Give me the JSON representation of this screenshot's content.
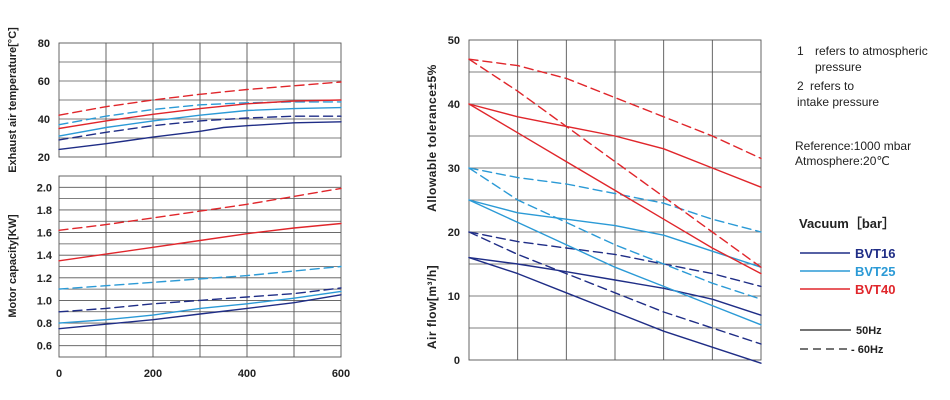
{
  "chart_data": [
    {
      "type": "line",
      "name": "exhaust-temperature",
      "ylabel": "Exhaust air temperature[°C]",
      "xlim": [
        0,
        600
      ],
      "ylim": [
        20,
        80
      ],
      "yticks": [
        "20",
        "40",
        "60",
        "80"
      ],
      "grid": true,
      "series": [
        {
          "name": "BVT16",
          "style": "solid",
          "color": "#1f2d86",
          "x": [
            0,
            100,
            200,
            300,
            350,
            400,
            500,
            600
          ],
          "y": [
            24,
            27,
            30.5,
            33.5,
            35.5,
            36.5,
            38,
            38.5
          ]
        },
        {
          "name": "BVT16",
          "style": "dashed",
          "color": "#1f2d86",
          "x": [
            0,
            100,
            200,
            300,
            400,
            500,
            600
          ],
          "y": [
            29,
            33,
            36.5,
            39,
            40.5,
            41.5,
            41.5
          ]
        },
        {
          "name": "BVT25",
          "style": "solid",
          "color": "#2b9ad6",
          "x": [
            0,
            100,
            200,
            300,
            400,
            500,
            600
          ],
          "y": [
            31,
            35.5,
            39,
            42,
            44.5,
            45.5,
            46
          ]
        },
        {
          "name": "BVT25",
          "style": "dashed",
          "color": "#2b9ad6",
          "x": [
            0,
            100,
            200,
            300,
            400,
            500,
            600
          ],
          "y": [
            37,
            41.5,
            45,
            47.5,
            48.5,
            49,
            49
          ]
        },
        {
          "name": "BVT40",
          "style": "solid",
          "color": "#e0262b",
          "x": [
            0,
            100,
            200,
            300,
            400,
            500,
            600
          ],
          "y": [
            35,
            39,
            42.5,
            45.5,
            48,
            49.5,
            50
          ]
        },
        {
          "name": "BVT40",
          "style": "dashed",
          "color": "#e0262b",
          "x": [
            0,
            100,
            200,
            300,
            400,
            500,
            600
          ],
          "y": [
            42,
            46.5,
            50,
            53,
            55.5,
            57.5,
            59.5
          ]
        }
      ]
    },
    {
      "type": "line",
      "name": "motor-capacity",
      "ylabel": "Motor capacity[KW]",
      "xlim": [
        0,
        600
      ],
      "ylim": [
        0.5,
        2.1
      ],
      "yticks": [
        "0.6",
        "0.8",
        "1.0",
        "1.2",
        "1.4",
        "1.6",
        "1.8",
        "2.0"
      ],
      "xticks": [
        "0",
        "200",
        "400",
        "600"
      ],
      "grid": true,
      "series": [
        {
          "name": "BVT16",
          "style": "solid",
          "color": "#1f2d86",
          "x": [
            0,
            100,
            200,
            300,
            400,
            500,
            600
          ],
          "y": [
            0.75,
            0.79,
            0.83,
            0.88,
            0.93,
            0.98,
            1.05
          ]
        },
        {
          "name": "BVT16",
          "style": "dashed",
          "color": "#1f2d86",
          "x": [
            0,
            100,
            200,
            300,
            400,
            500,
            600
          ],
          "y": [
            0.9,
            0.93,
            0.97,
            1.0,
            1.03,
            1.06,
            1.11
          ]
        },
        {
          "name": "BVT25",
          "style": "solid",
          "color": "#2b9ad6",
          "x": [
            0,
            100,
            200,
            300,
            400,
            500,
            600
          ],
          "y": [
            0.8,
            0.83,
            0.87,
            0.93,
            0.97,
            1.02,
            1.08
          ]
        },
        {
          "name": "BVT25",
          "style": "dashed",
          "color": "#2b9ad6",
          "x": [
            0,
            100,
            200,
            300,
            400,
            500,
            600
          ],
          "y": [
            1.1,
            1.13,
            1.16,
            1.19,
            1.22,
            1.26,
            1.3
          ]
        },
        {
          "name": "BVT40",
          "style": "solid",
          "color": "#e0262b",
          "x": [
            0,
            100,
            200,
            300,
            400,
            500,
            600
          ],
          "y": [
            1.35,
            1.41,
            1.47,
            1.53,
            1.59,
            1.64,
            1.68
          ]
        },
        {
          "name": "BVT40",
          "style": "dashed",
          "color": "#e0262b",
          "x": [
            0,
            100,
            200,
            300,
            400,
            500,
            600
          ],
          "y": [
            1.62,
            1.67,
            1.73,
            1.79,
            1.85,
            1.92,
            1.99
          ]
        }
      ]
    },
    {
      "type": "line",
      "name": "air-flow",
      "ylabel_top": "Allowable tolerance±5%",
      "ylabel_bottom": "Air flow[m³/h]",
      "xlim": [
        0,
        6
      ],
      "ylim": [
        0,
        50
      ],
      "yticks": [
        "0",
        "10",
        "20",
        "30",
        "40",
        "50"
      ],
      "grid": true,
      "series": [
        {
          "name": "BVT16 1",
          "style": "solid",
          "color": "#1f2d86",
          "x": [
            0,
            1,
            2,
            3,
            4,
            5,
            6
          ],
          "y": [
            16,
            13.5,
            10.5,
            7.5,
            4.5,
            2,
            -0.5
          ]
        },
        {
          "name": "BVT16 2",
          "style": "solid",
          "color": "#1f2d86",
          "x": [
            0,
            1,
            2,
            3,
            4,
            5,
            6
          ],
          "y": [
            16,
            15,
            13.8,
            12.5,
            11.2,
            9.5,
            7
          ]
        },
        {
          "name": "BVT16 1",
          "style": "dashed",
          "color": "#1f2d86",
          "x": [
            0,
            1,
            2,
            3,
            4,
            5,
            6
          ],
          "y": [
            20,
            16.5,
            13.5,
            10.5,
            7.5,
            5,
            2.5
          ]
        },
        {
          "name": "BVT16 2",
          "style": "dashed",
          "color": "#1f2d86",
          "x": [
            0,
            1,
            2,
            3,
            4,
            5,
            6
          ],
          "y": [
            20,
            18.5,
            17.5,
            16.5,
            15,
            13.5,
            11.5
          ]
        },
        {
          "name": "BVT25 1",
          "style": "solid",
          "color": "#2b9ad6",
          "x": [
            0,
            1,
            2,
            3,
            4,
            5,
            6
          ],
          "y": [
            25,
            21.5,
            18,
            14.5,
            11.5,
            8.5,
            5.5
          ]
        },
        {
          "name": "BVT25 2",
          "style": "solid",
          "color": "#2b9ad6",
          "x": [
            0,
            1,
            2,
            3,
            4,
            5,
            6
          ],
          "y": [
            25,
            23,
            22,
            21,
            19.5,
            17,
            14.5
          ]
        },
        {
          "name": "BVT25 1",
          "style": "dashed",
          "color": "#2b9ad6",
          "x": [
            0,
            1,
            2,
            3,
            4,
            5,
            6
          ],
          "y": [
            30,
            25,
            21.5,
            18,
            15,
            12,
            9.5
          ]
        },
        {
          "name": "BVT25 2",
          "style": "dashed",
          "color": "#2b9ad6",
          "x": [
            0,
            1,
            2,
            3,
            4,
            5,
            6
          ],
          "y": [
            30,
            28.5,
            27.5,
            26,
            24.5,
            22,
            20
          ]
        },
        {
          "name": "BVT40 1",
          "style": "solid",
          "color": "#e0262b",
          "x": [
            0,
            1,
            2,
            3,
            4,
            5,
            6
          ],
          "y": [
            40,
            35.5,
            31,
            26.5,
            22,
            17.5,
            13.5
          ]
        },
        {
          "name": "BVT40 2",
          "style": "solid",
          "color": "#e0262b",
          "x": [
            0,
            1,
            2,
            3,
            4,
            5,
            6
          ],
          "y": [
            40,
            38,
            36.5,
            35,
            33,
            30,
            27
          ]
        },
        {
          "name": "BVT40 1",
          "style": "dashed",
          "color": "#e0262b",
          "x": [
            0,
            1,
            2,
            3,
            4,
            5,
            6
          ],
          "y": [
            47,
            42,
            36.5,
            31,
            25.5,
            20,
            14.5
          ]
        },
        {
          "name": "BVT40 2",
          "style": "dashed",
          "color": "#e0262b",
          "x": [
            0,
            1,
            2,
            3,
            4,
            5,
            6
          ],
          "y": [
            47,
            46,
            44,
            41,
            38,
            35,
            31.5
          ]
        }
      ]
    }
  ],
  "notes": {
    "note1_num": "1",
    "note1_line1": "refers to atmospheric",
    "note1_line2": "pressure",
    "note2_num": "2",
    "note2_line1": "refers to",
    "note2_line2": "intake pressure",
    "reference": "Reference:1000 mbar",
    "atmosphere": "Atmosphere:20℃"
  },
  "legend": {
    "title": "Vacuum［bar］",
    "series": [
      {
        "name": "BVT16",
        "color": "#1f2d86"
      },
      {
        "name": "BVT25",
        "color": "#2b9ad6"
      },
      {
        "name": "BVT40",
        "color": "#e0262b"
      }
    ],
    "styles": [
      {
        "label": "50Hz",
        "style": "solid"
      },
      {
        "label": "- 60Hz",
        "style": "dashed"
      }
    ]
  }
}
